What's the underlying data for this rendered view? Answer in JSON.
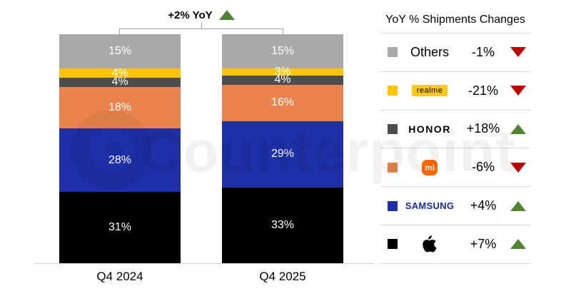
{
  "header": {
    "yoy_label": "+2% YoY",
    "yoy_direction": "up"
  },
  "watermark": {
    "text": "Counterpoint"
  },
  "chart_data": {
    "type": "bar",
    "stacked": true,
    "unit": "%",
    "title": "+2% YoY",
    "categories": [
      "Q4 2024",
      "Q4 2025"
    ],
    "series": [
      {
        "name": "Others",
        "color": "#A9A9A9",
        "values": [
          15,
          15
        ]
      },
      {
        "name": "realme",
        "color": "#FFC409",
        "values": [
          4,
          3
        ]
      },
      {
        "name": "HONOR",
        "color": "#4D4D4D",
        "values": [
          4,
          4
        ]
      },
      {
        "name": "Xiaomi",
        "color": "#EA834D",
        "values": [
          18,
          16
        ]
      },
      {
        "name": "Samsung",
        "color": "#1E2FA7",
        "values": [
          28,
          29
        ]
      },
      {
        "name": "Apple",
        "color": "#000000",
        "values": [
          31,
          33
        ]
      }
    ],
    "ylim": [
      0,
      100
    ],
    "grid": false,
    "legend_position": "right"
  },
  "legend": {
    "title": "YoY % Shipments Changes",
    "rows": [
      {
        "brand": "Others",
        "change": "-1%",
        "direction": "down",
        "color": "#A9A9A9"
      },
      {
        "brand": "realme",
        "change": "-21%",
        "direction": "down",
        "color": "#FFC409"
      },
      {
        "brand": "HONOR",
        "change": "+18%",
        "direction": "up",
        "color": "#4D4D4D"
      },
      {
        "brand": "mi",
        "change": "-6%",
        "direction": "down",
        "color": "#EA834D"
      },
      {
        "brand": "SAMSUNG",
        "change": "+4%",
        "direction": "up",
        "color": "#1E2FA7"
      },
      {
        "brand": "Apple",
        "change": "+7%",
        "direction": "up",
        "color": "#000000"
      }
    ]
  },
  "colors": {
    "up": "#548235",
    "down": "#C00000",
    "bracket": "#9D9D9D"
  }
}
